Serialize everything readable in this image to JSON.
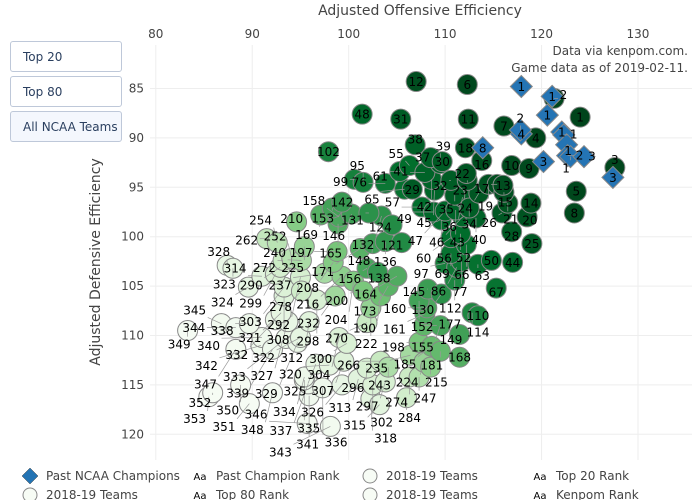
{
  "buttons": [
    {
      "label": "Top 20"
    },
    {
      "label": "Top 80"
    },
    {
      "label": "All NCAA Teams",
      "active": true
    }
  ],
  "annotation": {
    "line1": "Data via kenpom.com.",
    "line2": "Game data as of 2019-02-11."
  },
  "colors": {
    "champion": "#2474b4",
    "green_dark": "#00441b",
    "green_light": "#f7fcf5",
    "grid": "#eeeeee"
  },
  "legend": [
    {
      "symbol": "diamond",
      "label": "Past NCAA Champions"
    },
    {
      "symbol": "Aa",
      "label": "Past Champion Rank"
    },
    {
      "symbol": "circle",
      "label": "2018-19 Teams"
    },
    {
      "symbol": "Aa",
      "label": "Top 20 Rank"
    },
    {
      "symbol": "circle",
      "label": "2018-19 Teams"
    },
    {
      "symbol": "Aa",
      "label": "Top 80 Rank"
    },
    {
      "symbol": "circle",
      "label": "2018-19 Teams"
    },
    {
      "symbol": "Aa",
      "label": "Kenpom Rank"
    }
  ],
  "chart_data": {
    "type": "scatter",
    "xlabel": "Adjusted Offensive Efficiency",
    "ylabel": "Adjusted Defensive Efficiency",
    "xlim": [
      79.4,
      135.6
    ],
    "ylim": [
      80.6,
      122.6
    ],
    "y_reversed": true,
    "xticks": [
      80,
      90,
      100,
      110,
      120,
      130
    ],
    "yticks": [
      85,
      90,
      95,
      100,
      105,
      110,
      115,
      120
    ],
    "grid": true,
    "legend_position": "left",
    "champions": [
      {
        "rank": "1",
        "x": 117.9,
        "y": 84.8
      },
      {
        "rank": "1",
        "x": 121.1,
        "y": 85.8
      },
      {
        "rank": "1",
        "x": 120.6,
        "y": 87.7
      },
      {
        "rank": "4",
        "x": 117.9,
        "y": 89.6
      },
      {
        "rank": "2",
        "x": 117.8,
        "y": 89.2
      },
      {
        "rank": "1",
        "x": 122.1,
        "y": 89.4
      },
      {
        "rank": "1",
        "x": 122.3,
        "y": 89.7
      },
      {
        "rank": "1",
        "x": 122.6,
        "y": 90.7
      },
      {
        "rank": "2",
        "x": 122.7,
        "y": 91.8
      },
      {
        "rank": "1",
        "x": 123.0,
        "y": 91.9
      },
      {
        "rank": "3",
        "x": 120.2,
        "y": 92.4
      },
      {
        "rank": "3",
        "x": 124.4,
        "y": 91.9
      },
      {
        "rank": "8",
        "x": 113.9,
        "y": 91.0
      },
      {
        "rank": "3",
        "x": 127.4,
        "y": 94.0
      }
    ],
    "teams": [
      {
        "rank": 12,
        "x": 107.0,
        "y": 84.3
      },
      {
        "rank": 6,
        "x": 112.3,
        "y": 84.6
      },
      {
        "rank": 2,
        "x": 121.3,
        "y": 86.0
      },
      {
        "rank": 48,
        "x": 101.4,
        "y": 87.6
      },
      {
        "rank": 31,
        "x": 105.4,
        "y": 88.1
      },
      {
        "rank": 11,
        "x": 112.4,
        "y": 88.1
      },
      {
        "rank": 1,
        "x": 124.0,
        "y": 87.9
      },
      {
        "rank": 7,
        "x": 116.1,
        "y": 88.8
      },
      {
        "rank": 4,
        "x": 119.4,
        "y": 90.0
      },
      {
        "rank": 38,
        "x": 106.9,
        "y": 90.7
      },
      {
        "rank": 18,
        "x": 112.1,
        "y": 91.0
      },
      {
        "rank": 16,
        "x": 113.8,
        "y": 92.3
      },
      {
        "rank": 10,
        "x": 116.9,
        "y": 92.8
      },
      {
        "rank": 9,
        "x": 118.7,
        "y": 93.1
      },
      {
        "rank": 3,
        "x": 127.6,
        "y": 93.0
      },
      {
        "rank": 5,
        "x": 123.6,
        "y": 95.4
      },
      {
        "rank": 8,
        "x": 123.4,
        "y": 97.6
      },
      {
        "rank": 14,
        "x": 118.9,
        "y": 96.6
      },
      {
        "rank": 21,
        "x": 116.5,
        "y": 96.6
      },
      {
        "rank": 26,
        "x": 115.9,
        "y": 97.6
      },
      {
        "rank": 20,
        "x": 118.5,
        "y": 98.0
      },
      {
        "rank": 28,
        "x": 116.9,
        "y": 99.5
      },
      {
        "rank": 25,
        "x": 119.0,
        "y": 100.7
      },
      {
        "rank": 44,
        "x": 117.0,
        "y": 102.6
      },
      {
        "rank": 50,
        "x": 114.8,
        "y": 102.4
      },
      {
        "rank": 63,
        "x": 113.4,
        "y": 102.8
      },
      {
        "rank": 67,
        "x": 115.3,
        "y": 105.2
      },
      {
        "rank": 37,
        "x": 108.5,
        "y": 92.0
      },
      {
        "rank": 30,
        "x": 109.7,
        "y": 92.4
      },
      {
        "rank": 39,
        "x": 109.5,
        "y": 92.6
      },
      {
        "rank": 41,
        "x": 107.9,
        "y": 93.5
      },
      {
        "rank": 42,
        "x": 108.6,
        "y": 94.2
      },
      {
        "rank": 32,
        "x": 110.6,
        "y": 94.3
      },
      {
        "rank": 22,
        "x": 112.2,
        "y": 93.6
      },
      {
        "rank": 23,
        "x": 112.3,
        "y": 94.3
      },
      {
        "rank": 45,
        "x": 108.9,
        "y": 95.3
      },
      {
        "rank": 35,
        "x": 111.0,
        "y": 95.8
      },
      {
        "rank": 36,
        "x": 111.8,
        "y": 96.0
      },
      {
        "rank": 24,
        "x": 113.5,
        "y": 95.6
      },
      {
        "rank": 19,
        "x": 114.5,
        "y": 94.7
      },
      {
        "rank": 17,
        "x": 115.4,
        "y": 94.7
      },
      {
        "rank": 13,
        "x": 116.0,
        "y": 94.8
      },
      {
        "rank": 15,
        "x": 116.1,
        "y": 95.5
      },
      {
        "rank": 34,
        "x": 112.5,
        "y": 97.1
      },
      {
        "rank": 43,
        "x": 111.1,
        "y": 97.3
      },
      {
        "rank": 47,
        "x": 110.0,
        "y": 97.4
      },
      {
        "rank": 40,
        "x": 113.2,
        "y": 98.1
      },
      {
        "rank": 46,
        "x": 111.8,
        "y": 98.0
      },
      {
        "rank": 49,
        "x": 108.8,
        "y": 97.5
      },
      {
        "rank": 57,
        "x": 107.6,
        "y": 97.0
      },
      {
        "rank": 55,
        "x": 106.3,
        "y": 92.8
      },
      {
        "rank": 61,
        "x": 105.3,
        "y": 93.4
      },
      {
        "rank": 76,
        "x": 103.8,
        "y": 94.6
      },
      {
        "rank": 65,
        "x": 105.8,
        "y": 95.2
      },
      {
        "rank": 29,
        "x": 106.6,
        "y": 95.2
      },
      {
        "rank": 56,
        "x": 109.6,
        "y": 98.3
      },
      {
        "rank": 52,
        "x": 111.6,
        "y": 99.7
      },
      {
        "rank": 60,
        "x": 110.6,
        "y": 100.1
      },
      {
        "rank": 66,
        "x": 112.2,
        "y": 100.8
      },
      {
        "rank": 69,
        "x": 110.6,
        "y": 101.7
      },
      {
        "rank": 77,
        "x": 111.7,
        "y": 102.5
      },
      {
        "rank": 86,
        "x": 111.2,
        "y": 103.1
      },
      {
        "rank": 97,
        "x": 110.0,
        "y": 102.7
      },
      {
        "rank": 112,
        "x": 111.0,
        "y": 104.4
      },
      {
        "rank": 145,
        "x": 108.2,
        "y": 105.3
      },
      {
        "rank": 130,
        "x": 109.6,
        "y": 105.8
      },
      {
        "rank": 152,
        "x": 107.3,
        "y": 106.5
      },
      {
        "rank": 160,
        "x": 108.1,
        "y": 107.2
      },
      {
        "rank": 161,
        "x": 107.9,
        "y": 107.8
      },
      {
        "rank": 114,
        "x": 112.8,
        "y": 107.7
      },
      {
        "rank": 110,
        "x": 113.4,
        "y": 108.0
      },
      {
        "rank": 155,
        "x": 109.5,
        "y": 109.0
      },
      {
        "rank": 149,
        "x": 111.5,
        "y": 109.9
      },
      {
        "rank": 177,
        "x": 107.8,
        "y": 109.0
      },
      {
        "rank": 185,
        "x": 108.6,
        "y": 111.1
      },
      {
        "rank": 198,
        "x": 107.3,
        "y": 110.7
      },
      {
        "rank": 181,
        "x": 109.5,
        "y": 111.6
      },
      {
        "rank": 168,
        "x": 111.5,
        "y": 112.2
      },
      {
        "rank": 215,
        "x": 108.5,
        "y": 113.2
      },
      {
        "rank": 224,
        "x": 107.8,
        "y": 112.7
      },
      {
        "rank": 235,
        "x": 106.4,
        "y": 112.0
      },
      {
        "rank": 247,
        "x": 107.3,
        "y": 114.2
      },
      {
        "rank": 274,
        "x": 106.3,
        "y": 114.2
      },
      {
        "rank": 284,
        "x": 106.0,
        "y": 116.3
      },
      {
        "rank": 102,
        "x": 97.9,
        "y": 91.4
      },
      {
        "rank": 99,
        "x": 100.6,
        "y": 94.2
      },
      {
        "rank": 95,
        "x": 101.5,
        "y": 94.5
      },
      {
        "rank": 142,
        "x": 99.3,
        "y": 96.5
      },
      {
        "rank": 153,
        "x": 98.3,
        "y": 97.1
      },
      {
        "rank": 169,
        "x": 97.1,
        "y": 97.8
      },
      {
        "rank": 210,
        "x": 94.6,
        "y": 98.5
      },
      {
        "rank": 158,
        "x": 99.0,
        "y": 98.0
      },
      {
        "rank": 165,
        "x": 98.9,
        "y": 98.7
      },
      {
        "rank": 146,
        "x": 100.3,
        "y": 97.7
      },
      {
        "rank": 131,
        "x": 102.1,
        "y": 97.6
      },
      {
        "rank": 132,
        "x": 103.4,
        "y": 97.9
      },
      {
        "rank": 124,
        "x": 104.5,
        "y": 98.8
      },
      {
        "rank": 148,
        "x": 102.5,
        "y": 100.7
      },
      {
        "rank": 136,
        "x": 103.8,
        "y": 100.5
      },
      {
        "rank": 171,
        "x": 101.2,
        "y": 101.2
      },
      {
        "rank": 197,
        "x": 98.8,
        "y": 101.5
      },
      {
        "rank": 121,
        "x": 105.5,
        "y": 100.6
      },
      {
        "rank": 138,
        "x": 103.0,
        "y": 103.6
      },
      {
        "rank": 156,
        "x": 101.9,
        "y": 103.2
      },
      {
        "rank": 164,
        "x": 105.0,
        "y": 104.0
      },
      {
        "rank": 173,
        "x": 104.1,
        "y": 105.0
      },
      {
        "rank": 190,
        "x": 103.3,
        "y": 106.0
      },
      {
        "rank": 200,
        "x": 101.5,
        "y": 105.5
      },
      {
        "rank": 208,
        "x": 98.4,
        "y": 102.6
      },
      {
        "rank": 204,
        "x": 100.5,
        "y": 104.5
      },
      {
        "rank": 232,
        "x": 98.6,
        "y": 106.0
      },
      {
        "rank": 237,
        "x": 97.5,
        "y": 103.7
      },
      {
        "rank": 216,
        "x": 99.3,
        "y": 104.0
      },
      {
        "rank": 222,
        "x": 102.3,
        "y": 107.2
      },
      {
        "rank": 262,
        "x": 91.5,
        "y": 100.2
      },
      {
        "rank": 254,
        "x": 92.6,
        "y": 100.6
      },
      {
        "rank": 225,
        "x": 95.4,
        "y": 101.0
      },
      {
        "rank": 252,
        "x": 94.1,
        "y": 102.2
      },
      {
        "rank": 272,
        "x": 93.2,
        "y": 102.4
      },
      {
        "rank": 290,
        "x": 92.9,
        "y": 103.1
      },
      {
        "rank": 240,
        "x": 95.1,
        "y": 102.4
      },
      {
        "rank": 299,
        "x": 92.4,
        "y": 103.8
      },
      {
        "rank": 292,
        "x": 95.0,
        "y": 104.1
      },
      {
        "rank": 303,
        "x": 93.3,
        "y": 105.1
      },
      {
        "rank": 308,
        "x": 93.3,
        "y": 106.0
      },
      {
        "rank": 278,
        "x": 95.1,
        "y": 105.5
      },
      {
        "rank": 328,
        "x": 87.4,
        "y": 102.9
      },
      {
        "rank": 323,
        "x": 88.0,
        "y": 103.2
      },
      {
        "rank": 314,
        "x": 91.0,
        "y": 104.0
      },
      {
        "rank": 324,
        "x": 89.6,
        "y": 105.1
      },
      {
        "rank": 321,
        "x": 93.0,
        "y": 107.7
      },
      {
        "rank": 332,
        "x": 92.4,
        "y": 108.4
      },
      {
        "rank": 327,
        "x": 93.7,
        "y": 108.6
      },
      {
        "rank": 312,
        "x": 95.9,
        "y": 108.6
      },
      {
        "rank": 298,
        "x": 96.7,
        "y": 106.4
      },
      {
        "rank": 304,
        "x": 99.0,
        "y": 110.2
      },
      {
        "rank": 300,
        "x": 99.8,
        "y": 110.8
      },
      {
        "rank": 270,
        "x": 101.9,
        "y": 108.7
      },
      {
        "rank": 345,
        "x": 86.8,
        "y": 108.8
      },
      {
        "rank": 344,
        "x": 88.3,
        "y": 109.2
      },
      {
        "rank": 338,
        "x": 89.7,
        "y": 108.8
      },
      {
        "rank": 349,
        "x": 83.3,
        "y": 109.5
      },
      {
        "rank": 347,
        "x": 88.3,
        "y": 111.4
      },
      {
        "rank": 340,
        "x": 91.0,
        "y": 110.2
      },
      {
        "rank": 342,
        "x": 90.9,
        "y": 111.0
      },
      {
        "rank": 339,
        "x": 92.1,
        "y": 111.4
      },
      {
        "rank": 333,
        "x": 93.5,
        "y": 110.3
      },
      {
        "rank": 322,
        "x": 95.0,
        "y": 110.2
      },
      {
        "rank": 329,
        "x": 94.7,
        "y": 110.7
      },
      {
        "rank": 325,
        "x": 96.6,
        "y": 112.9
      },
      {
        "rank": 320,
        "x": 98.0,
        "y": 113.0
      },
      {
        "rank": 307,
        "x": 99.5,
        "y": 112.6
      },
      {
        "rank": 296,
        "x": 101.9,
        "y": 113.3
      },
      {
        "rank": 266,
        "x": 103.3,
        "y": 112.6
      },
      {
        "rank": 243,
        "x": 104.1,
        "y": 113.2
      },
      {
        "rank": 313,
        "x": 101.0,
        "y": 114.4
      },
      {
        "rank": 302,
        "x": 102.5,
        "y": 115.0
      },
      {
        "rank": 297,
        "x": 103.8,
        "y": 114.7
      },
      {
        "rank": 334,
        "x": 95.4,
        "y": 114.2
      },
      {
        "rank": 335,
        "x": 95.4,
        "y": 114.5
      },
      {
        "rank": 337,
        "x": 95.8,
        "y": 114.9
      },
      {
        "rank": 341,
        "x": 95.9,
        "y": 116.1
      },
      {
        "rank": 336,
        "x": 97.3,
        "y": 115.3
      },
      {
        "rank": 326,
        "x": 99.3,
        "y": 115.0
      },
      {
        "rank": 318,
        "x": 102.3,
        "y": 116.4
      },
      {
        "rank": 315,
        "x": 103.2,
        "y": 117.0
      },
      {
        "rank": 350,
        "x": 88.8,
        "y": 115.0
      },
      {
        "rank": 352,
        "x": 85.9,
        "y": 115.8
      },
      {
        "rank": 353,
        "x": 85.5,
        "y": 116.2
      },
      {
        "rank": 351,
        "x": 89.7,
        "y": 116.9
      },
      {
        "rank": 348,
        "x": 92.1,
        "y": 115.8
      },
      {
        "rank": 346,
        "x": 95.7,
        "y": 118.9
      },
      {
        "rank": 343,
        "x": 98.1,
        "y": 119.2
      }
    ]
  }
}
